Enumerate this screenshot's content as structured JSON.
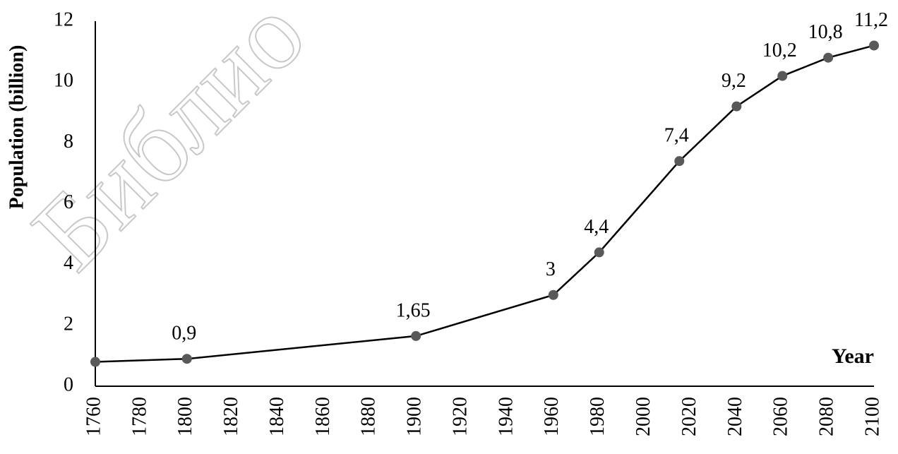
{
  "chart_data": {
    "type": "line",
    "watermark": "Библио",
    "x_label": "Year",
    "y_label": "Population (billion)",
    "x": [
      1760,
      1800,
      1900,
      1960,
      1980,
      2015,
      2040,
      2060,
      2080,
      2100
    ],
    "values": [
      0.8,
      0.9,
      1.65,
      3,
      4.4,
      7.4,
      9.2,
      10.2,
      10.8,
      11.2
    ],
    "value_labels": [
      null,
      "0,9",
      "1,65",
      "3",
      "4,4",
      "7,4",
      "9,2",
      "10,2",
      "10,8",
      "11,2"
    ],
    "color": "#000000",
    "marker_color": "#595959",
    "xlim": [
      1760,
      2100
    ],
    "xticks": [
      1760,
      1780,
      1800,
      1820,
      1840,
      1860,
      1880,
      1900,
      1920,
      1940,
      1960,
      1980,
      2000,
      2020,
      2040,
      2060,
      2080,
      2100
    ],
    "ylim": [
      0,
      12
    ],
    "yticks": [
      0,
      2,
      4,
      6,
      8,
      10,
      12
    ],
    "grid": false
  }
}
